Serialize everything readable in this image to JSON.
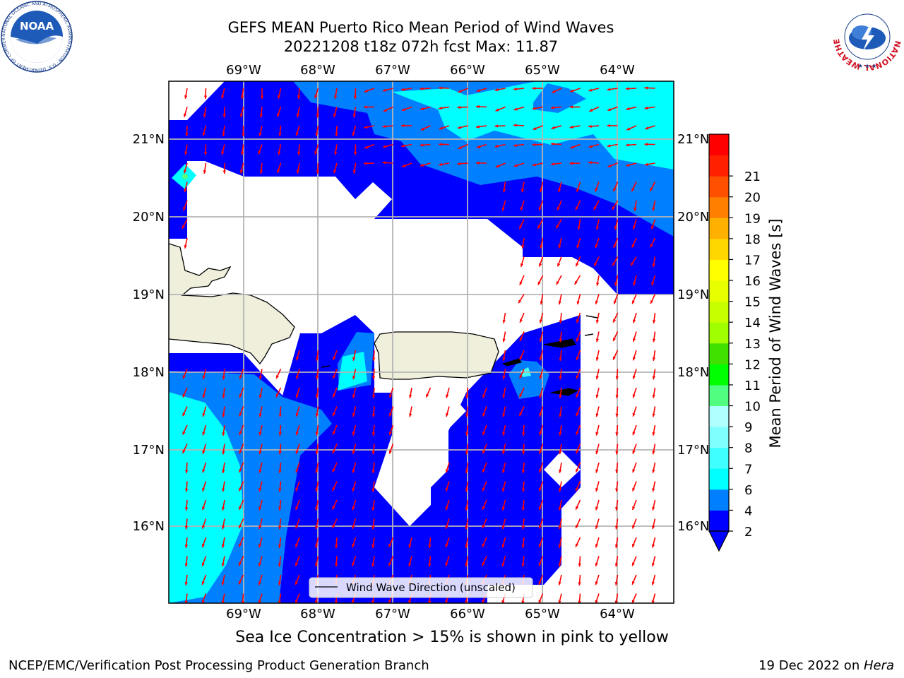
{
  "header": {
    "title_line1": "GEFS MEAN Puerto Rico Mean Period of Wind Waves",
    "title_line2": "20221208 t18z 072h fcst   Max: 11.87"
  },
  "logos": {
    "left": "NOAA",
    "left_ring_text": "NATIONAL OCEANIC AND ATMOSPHERIC ADMINISTRATION · U.S. DEPARTMENT OF COMMERCE",
    "right_ring_text": "NATIONAL WEATHER SERVICE"
  },
  "map": {
    "lon_labels": [
      "69°W",
      "68°W",
      "67°W",
      "66°W",
      "65°W",
      "64°W"
    ],
    "lat_labels": [
      "21°N",
      "20°N",
      "19°N",
      "18°N",
      "17°N",
      "16°N"
    ],
    "legend_label": "Wind Wave Direction (unscaled)",
    "arrow_color": "#ff0000"
  },
  "colorbar": {
    "label": "Mean Period of Wind Waves [s]",
    "ticks": [
      "2",
      "4",
      "6",
      "7",
      "8",
      "9",
      "10",
      "11",
      "12",
      "13",
      "14",
      "15",
      "16",
      "17",
      "18",
      "19",
      "20",
      "21"
    ],
    "colors": [
      "#0000ff",
      "#0080ff",
      "#00ffff",
      "#40ffff",
      "#80ffff",
      "#b0ffff",
      "#50ff80",
      "#00ff00",
      "#40e000",
      "#a0ff00",
      "#c8ff00",
      "#e8ff00",
      "#ffff00",
      "#ffd700",
      "#ffb000",
      "#ff8000",
      "#ff5000",
      "#ff2000",
      "#ff0000"
    ]
  },
  "caption": "Sea Ice Concentration > 15% is shown in pink to yellow",
  "footer": {
    "left": "NCEP/EMC/Verification Post Processing Product Generation Branch",
    "date": "19 Dec 2022 on ",
    "host": "Hera"
  }
}
